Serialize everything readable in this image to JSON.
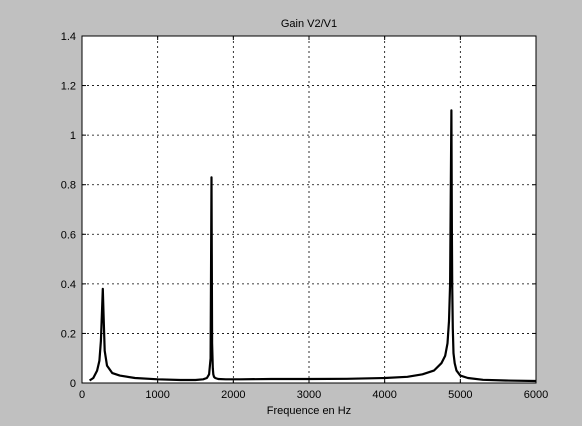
{
  "chart_data": {
    "type": "line",
    "title": "Gain V2/V1",
    "xlabel": "Frequence en Hz",
    "ylabel": "",
    "xlim": [
      0,
      6000
    ],
    "ylim": [
      0,
      1.4
    ],
    "grid": true,
    "x_ticks": [
      0,
      1000,
      2000,
      3000,
      4000,
      5000,
      6000
    ],
    "x_tick_labels": [
      "0",
      "1000",
      "2000",
      "3000",
      "4000",
      "5000",
      "6000"
    ],
    "y_ticks": [
      0,
      0.2,
      0.4,
      0.6,
      0.8,
      1.0,
      1.2,
      1.4
    ],
    "y_tick_labels": [
      "0",
      "0.2",
      "0.4",
      "0.6",
      "0.8",
      "1",
      "1.2",
      "1.4"
    ],
    "series": [
      {
        "color": "#000000",
        "x": [
          100,
          150,
          200,
          230,
          250,
          265,
          275,
          285,
          300,
          330,
          400,
          500,
          700,
          1000,
          1300,
          1500,
          1600,
          1650,
          1680,
          1700,
          1712,
          1720,
          1728,
          1735,
          1745,
          1760,
          1800,
          1900,
          2100,
          2500,
          3000,
          3500,
          4000,
          4300,
          4500,
          4650,
          4750,
          4800,
          4830,
          4850,
          4865,
          4875,
          4882,
          4888,
          4893,
          4900,
          4910,
          4925,
          4950,
          5000,
          5100,
          5300,
          5600,
          6000
        ],
        "y": [
          0.01,
          0.02,
          0.05,
          0.09,
          0.17,
          0.3,
          0.38,
          0.27,
          0.13,
          0.07,
          0.04,
          0.03,
          0.02,
          0.015,
          0.012,
          0.012,
          0.015,
          0.02,
          0.035,
          0.1,
          0.83,
          0.16,
          0.06,
          0.035,
          0.025,
          0.02,
          0.016,
          0.015,
          0.015,
          0.016,
          0.016,
          0.017,
          0.02,
          0.025,
          0.035,
          0.05,
          0.08,
          0.11,
          0.16,
          0.25,
          0.4,
          0.84,
          1.1,
          0.6,
          0.4,
          0.22,
          0.12,
          0.08,
          0.05,
          0.03,
          0.02,
          0.013,
          0.01,
          0.008
        ]
      }
    ]
  }
}
